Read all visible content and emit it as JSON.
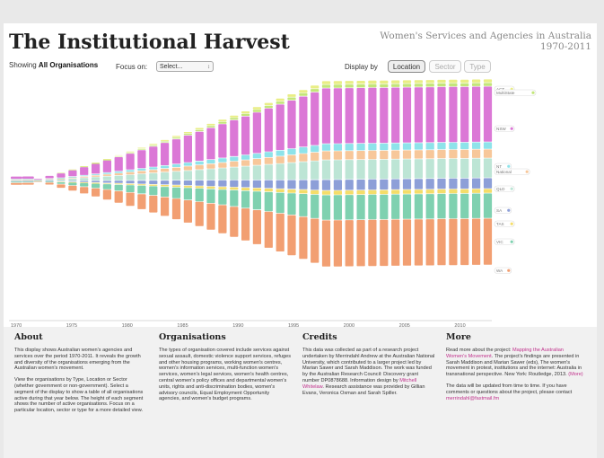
{
  "header": {
    "title": "The Institutional Harvest",
    "subtitle_line1": "Women's Services and Agencies in Australia",
    "subtitle_line2": "1970-2011"
  },
  "controls": {
    "showing_prefix": "Showing",
    "showing_value": "All Organisations",
    "focus_label": "Focus on:",
    "focus_selected": "Select...",
    "display_label": "Display by",
    "display_options": [
      "Location",
      "Sector",
      "Type"
    ],
    "display_active": "Location"
  },
  "chart_data": {
    "type": "area",
    "x_ticks": [
      "1970",
      "1975",
      "1980",
      "1985",
      "1990",
      "1995",
      "2000",
      "2005",
      "2010"
    ],
    "series": [
      {
        "name": "WA",
        "color": "#f29f72"
      },
      {
        "name": "VIC",
        "color": "#7fd1b0"
      },
      {
        "name": "TAS",
        "color": "#f4dd6a"
      },
      {
        "name": "SA",
        "color": "#8d9fd8"
      },
      {
        "name": "QLD",
        "color": "#bde5d5"
      },
      {
        "name": "National",
        "color": "#f7c79a"
      },
      {
        "name": "NT",
        "color": "#8ee3ea"
      },
      {
        "name": "NSW",
        "color": "#db78d6"
      },
      {
        "name": "MultiState",
        "color": "#c3e67a"
      },
      {
        "name": "ACT",
        "color": "#e9ee86"
      }
    ],
    "legend_labels": [
      "ACT",
      "MultiState",
      "NSW",
      "NT",
      "National",
      "QLD",
      "SA",
      "TAS",
      "VIC",
      "WA"
    ]
  },
  "sections": {
    "about": {
      "title": "About",
      "p1": "This display shows Australian women's agencies and services over the period 1970-2011. It reveals the growth and diversity of the organisations emerging from the Australian women's movement.",
      "p2": "View the organisations by Type, Location or Sector (whether government or non-government). Select a segment of the display to show a table of all organisations active during that year below. The height of each segment shows the number of active organisations. Focus on a particular location, sector or type for a more detailed view."
    },
    "organisations": {
      "title": "Organisations",
      "p1": "The types of organisation covered include services against sexual assault, domestic violence support services, refuges and other housing programs, working women's centres, women's information services, multi-function women's services, women's legal services, women's health centres, central women's policy offices and departmental women's units, rights and anti-discrimination bodies, women's advisory councils, Equal Employment Opportunity agencies, and women's budget programs."
    },
    "credits": {
      "title": "Credits",
      "p1_a": "This data was collected as part of a research project undertaken by Merrindahl Andrew at the Australian National University, which contributed to a larger project led by Marian Sawer and Sarah Maddison. The work was funded by the Australian Research Council: Discovery grant number DP0878688. Information design by ",
      "p1_link": "Mitchell Whitelaw",
      "p1_b": ". Research assistance was provided by Gillian Evans, Veronica Oxman and Sarah Spiller."
    },
    "more": {
      "title": "More",
      "p1_a": "Read more about the project: ",
      "p1_link": "Mapping the Australian Women's Movement",
      "p1_b": ". The project's findings are presented in Sarah Maddison and Marian Sawer (eds), The women's movement in protest, institutions and the internet: Australia in transnational perspective. New York: Routledge, 2013. ",
      "p1_more": "(More)",
      "p2_a": "The data will be updated from time to time. If you have comments or questions about the project, please contact ",
      "p2_link": "merrindahl@fastmail.fm"
    }
  }
}
